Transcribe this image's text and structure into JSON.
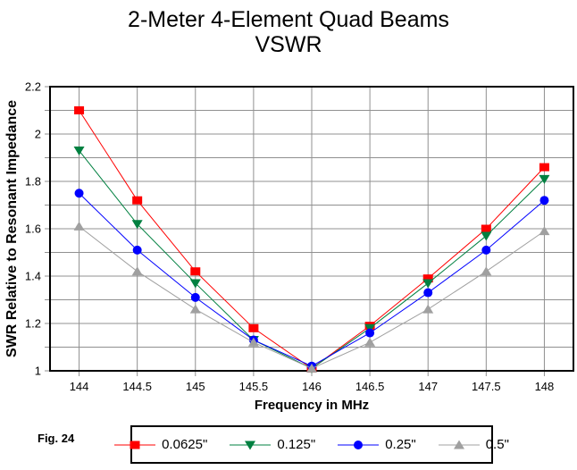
{
  "title": {
    "line1": "2-Meter 4-Element Quad Beams",
    "line2": "VSWR"
  },
  "figure_label": "Fig. 24",
  "colors": {
    "grid": "#909090",
    "axis": "#000000",
    "background": "#ffffff"
  },
  "chart_data": {
    "type": "line",
    "title": "2-Meter 4-Element Quad Beams VSWR",
    "xlabel": "Frequency in MHz",
    "ylabel": "SWR Relative to Resonant Impedance",
    "grid": true,
    "legend_position": "bottom",
    "xlim": [
      143.75,
      148.25
    ],
    "ylim": [
      1,
      2.2
    ],
    "x": [
      144,
      144.5,
      145,
      145.5,
      146,
      146.5,
      147,
      147.5,
      148
    ],
    "x_tick_labels": [
      "144",
      "144.5",
      "145",
      "145.5",
      "146",
      "146.5",
      "147",
      "147.5",
      "148"
    ],
    "y_ticks": [
      1,
      1.2,
      1.4,
      1.6,
      1.8,
      2,
      2.2
    ],
    "y_tick_labels": [
      "1",
      "1.2",
      "1.4",
      "1.6",
      "1.8",
      "2",
      "2.2"
    ],
    "y_grid_step": 0.1,
    "series": [
      {
        "name": "0.0625\"",
        "color": "#ff0000",
        "marker": "square",
        "values": [
          2.1,
          1.72,
          1.42,
          1.18,
          1.01,
          1.19,
          1.39,
          1.6,
          1.86
        ]
      },
      {
        "name": "0.125\"",
        "color": "#008040",
        "marker": "triangle-down",
        "values": [
          1.93,
          1.62,
          1.37,
          1.13,
          1.01,
          1.18,
          1.37,
          1.57,
          1.81
        ]
      },
      {
        "name": "0.25\"",
        "color": "#0000ff",
        "marker": "circle",
        "values": [
          1.75,
          1.51,
          1.31,
          1.13,
          1.02,
          1.16,
          1.33,
          1.51,
          1.72
        ]
      },
      {
        "name": "0.5\"",
        "color": "#a0a0a0",
        "marker": "triangle-up",
        "values": [
          1.61,
          1.42,
          1.26,
          1.12,
          1.01,
          1.12,
          1.26,
          1.42,
          1.59
        ]
      }
    ]
  }
}
